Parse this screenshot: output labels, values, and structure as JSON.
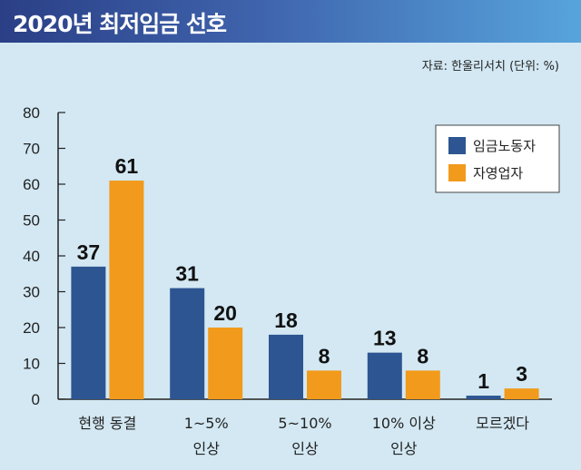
{
  "header": {
    "title": "2020년 최저임금 선호",
    "source": "자료: 한울리서치 (단위: %)"
  },
  "chart_data": {
    "type": "bar",
    "title": "2020년 최저임금 선호",
    "categories": [
      [
        "현행 동결"
      ],
      [
        "1~5%",
        "인상"
      ],
      [
        "5~10%",
        "인상"
      ],
      [
        "10% 이상",
        "인상"
      ],
      [
        "모르겠다"
      ]
    ],
    "series": [
      {
        "name": "임금노동자",
        "color": "#2d5591",
        "values": [
          37,
          31,
          18,
          13,
          1
        ]
      },
      {
        "name": "자영업자",
        "color": "#f29a1b",
        "values": [
          61,
          20,
          8,
          8,
          3
        ]
      }
    ],
    "ylim": [
      0,
      80
    ],
    "yticks": [
      0,
      10,
      20,
      30,
      40,
      50,
      60,
      70,
      80
    ],
    "xlabel": "",
    "ylabel": "",
    "legend_position": "top-right",
    "grid": false
  }
}
